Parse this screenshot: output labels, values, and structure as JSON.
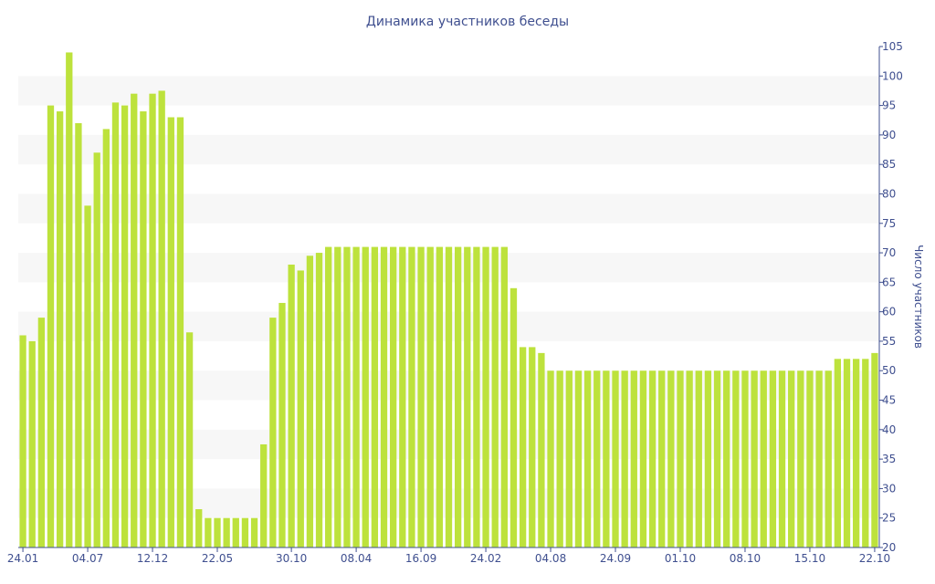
{
  "chart_data": {
    "type": "bar",
    "title": "Динамика участников беседы",
    "ylabel": "Число участников",
    "xlabel": "",
    "ylim": [
      20,
      105
    ],
    "yticks": [
      20,
      25,
      30,
      35,
      40,
      45,
      50,
      55,
      60,
      65,
      70,
      75,
      80,
      85,
      90,
      95,
      100,
      105
    ],
    "y_axis_side": "right",
    "grid": "alternating horizontal bands",
    "legend": "none",
    "xtick_labels": [
      {
        "index": 0,
        "label": "24.01"
      },
      {
        "index": 7,
        "label": "04.07"
      },
      {
        "index": 14,
        "label": "12.12"
      },
      {
        "index": 21,
        "label": "22.05"
      },
      {
        "index": 29,
        "label": "30.10"
      },
      {
        "index": 36,
        "label": "08.04"
      },
      {
        "index": 43,
        "label": "16.09"
      },
      {
        "index": 50,
        "label": "24.02"
      },
      {
        "index": 57,
        "label": "04.08"
      },
      {
        "index": 64,
        "label": "24.09"
      },
      {
        "index": 71,
        "label": "01.10"
      },
      {
        "index": 78,
        "label": "08.10"
      },
      {
        "index": 85,
        "label": "15.10"
      },
      {
        "index": 92,
        "label": "22.10"
      }
    ],
    "values": [
      56,
      55,
      59,
      95,
      94,
      104,
      92,
      78,
      87,
      91,
      95.5,
      95,
      97,
      94,
      97,
      97.5,
      93,
      93,
      56.5,
      26.5,
      25,
      25,
      25,
      25,
      25,
      25,
      37.5,
      59,
      61.5,
      68,
      67,
      69.5,
      70,
      71,
      71,
      71,
      71,
      71,
      71,
      71,
      71,
      71,
      71,
      71,
      71,
      71,
      71,
      71,
      71,
      71,
      71,
      71,
      71,
      64,
      54,
      54,
      53,
      50,
      50,
      50,
      50,
      50,
      50,
      50,
      50,
      50,
      50,
      50,
      50,
      50,
      50,
      50,
      50,
      50,
      50,
      50,
      50,
      50,
      50,
      50,
      50,
      50,
      50,
      50,
      50,
      50,
      50,
      50,
      52,
      52,
      52,
      52,
      53
    ],
    "colors": {
      "bar": "#bde23c",
      "text": "#3f4f8f",
      "band": "#f7f7f7",
      "axis": "#3f4f8f"
    }
  }
}
